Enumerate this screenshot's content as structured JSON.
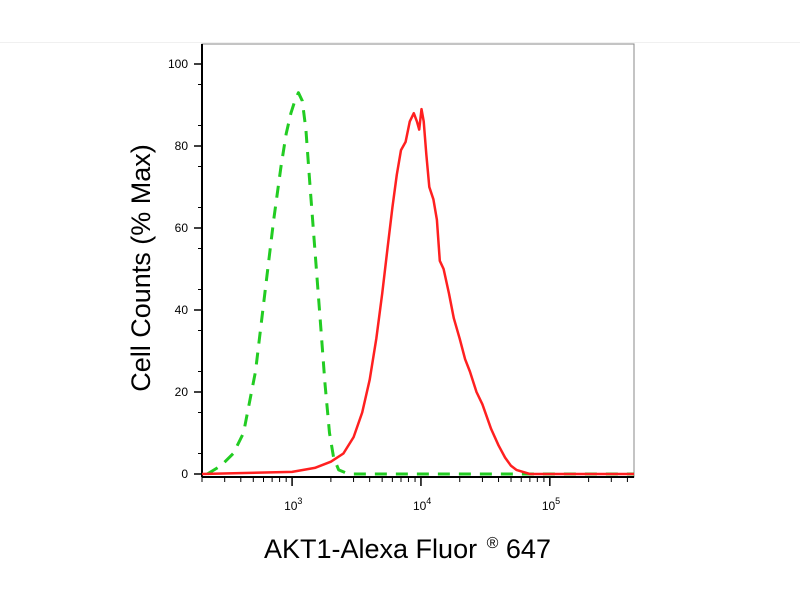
{
  "chart_data": {
    "type": "line",
    "title": "",
    "xlabel": "AKT1-Alexa Fluor",
    "xlabel_mark": "®",
    "xlabel_suffix": " 647",
    "ylabel": "Cell Counts (% Max)",
    "xscale": "log",
    "xlim": [
      200,
      450000
    ],
    "ylim": [
      0,
      100
    ],
    "grid": false,
    "legend": "none",
    "y_ticks": [
      {
        "value": 0,
        "label": "0"
      },
      {
        "value": 20,
        "label": "20"
      },
      {
        "value": 40,
        "label": "40"
      },
      {
        "value": 60,
        "label": "60"
      },
      {
        "value": 80,
        "label": "80"
      },
      {
        "value": 100,
        "label": "100"
      }
    ],
    "x_major_ticks": [
      {
        "value": 1000,
        "base": "10",
        "exp": "3"
      },
      {
        "value": 10000,
        "base": "10",
        "exp": "4"
      },
      {
        "value": 100000,
        "base": "10",
        "exp": "5"
      }
    ],
    "series": [
      {
        "style": "dashed",
        "color": "#22cc22",
        "x": [
          220,
          280,
          350,
          420,
          520,
          620,
          720,
          820,
          900,
          980,
          1050,
          1120,
          1200,
          1280,
          1380,
          1500,
          1650,
          1800,
          1950,
          2100,
          2300,
          2600,
          3000,
          3600,
          5000,
          10000,
          50000,
          100000,
          450000
        ],
        "y": [
          0,
          2,
          5,
          10,
          25,
          45,
          62,
          75,
          83,
          88,
          91,
          93,
          91,
          84,
          70,
          55,
          38,
          22,
          10,
          4,
          1,
          0.3,
          0,
          0,
          0,
          0,
          0,
          0,
          0
        ]
      },
      {
        "style": "solid",
        "color": "#ff2020",
        "x": [
          200,
          1000,
          1500,
          2000,
          2500,
          3000,
          3500,
          4000,
          4500,
          5000,
          5500,
          6000,
          6500,
          7000,
          7600,
          8200,
          8800,
          9300,
          9700,
          10100,
          10500,
          11000,
          11600,
          12500,
          13300,
          14000,
          15000,
          16500,
          18000,
          20000,
          22000,
          24000,
          27000,
          30000,
          35000,
          40000,
          45000,
          50000,
          55000,
          62000,
          70000,
          100000,
          200000,
          450000
        ],
        "y": [
          0,
          0.5,
          1.5,
          3,
          5,
          9,
          15,
          23,
          33,
          44,
          55,
          65,
          73,
          79,
          81,
          86,
          88,
          86,
          84,
          89,
          86,
          78,
          70,
          67,
          62,
          52,
          50,
          44,
          38,
          33,
          28,
          25,
          20,
          17,
          11,
          7,
          4,
          2,
          1,
          0.5,
          0,
          0,
          0,
          0
        ]
      }
    ]
  }
}
